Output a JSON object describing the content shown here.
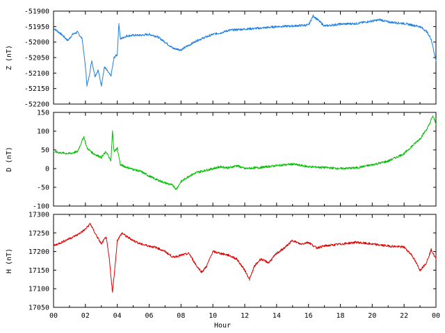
{
  "chart_data": [
    {
      "type": "line",
      "ylabel": "Z (nT)",
      "ylim": [
        -52200,
        -51900
      ],
      "yticks": [
        -51900,
        -51950,
        -52000,
        -52050,
        -52100,
        -52150,
        -52200
      ],
      "color": "#1f7fe0",
      "grid": false,
      "x": [
        0,
        0.5,
        0.9,
        1.2,
        1.5,
        1.8,
        2.0,
        2.1,
        2.2,
        2.4,
        2.6,
        2.8,
        3.0,
        3.2,
        3.4,
        3.6,
        3.8,
        4.0,
        4.1,
        4.2,
        4.4,
        4.6,
        5.0,
        5.5,
        6.0,
        6.5,
        7.0,
        7.5,
        8.0,
        8.5,
        9.0,
        9.5,
        10.0,
        10.5,
        11.0,
        11.5,
        12.0,
        13.0,
        14.0,
        15.0,
        16.0,
        16.3,
        17.0,
        18.0,
        19.0,
        20.0,
        20.5,
        21.0,
        22.0,
        23.0,
        23.4,
        23.7,
        24.0
      ],
      "y": [
        -51955,
        -51975,
        -51995,
        -51975,
        -51968,
        -51990,
        -52080,
        -52140,
        -52120,
        -52060,
        -52110,
        -52090,
        -52140,
        -52080,
        -52095,
        -52110,
        -52050,
        -52040,
        -51940,
        -51990,
        -51985,
        -51980,
        -51978,
        -51978,
        -51975,
        -51982,
        -52000,
        -52020,
        -52025,
        -52010,
        -51995,
        -51985,
        -51975,
        -51970,
        -51962,
        -51960,
        -51958,
        -51955,
        -51950,
        -51948,
        -51945,
        -51915,
        -51948,
        -51942,
        -51940,
        -51932,
        -51928,
        -51935,
        -51940,
        -51950,
        -51965,
        -51990,
        -52060
      ]
    },
    {
      "type": "line",
      "ylabel": "D (nT)",
      "ylim": [
        -100,
        150
      ],
      "yticks": [
        150,
        100,
        50,
        0,
        -50,
        -100
      ],
      "color": "#00c000",
      "grid": false,
      "x": [
        0,
        0.5,
        1.0,
        1.5,
        1.9,
        2.1,
        2.5,
        3.0,
        3.3,
        3.6,
        3.7,
        3.8,
        4.0,
        4.2,
        4.5,
        5.0,
        5.5,
        6.0,
        6.5,
        7.0,
        7.5,
        7.7,
        8.0,
        8.5,
        9.0,
        9.5,
        10.0,
        10.5,
        11.0,
        11.5,
        12.0,
        13.0,
        14.0,
        15.0,
        16.0,
        17.0,
        18.0,
        19.0,
        20.0,
        21.0,
        22.0,
        22.5,
        23.0,
        23.5,
        23.8,
        24.0
      ],
      "y": [
        45,
        42,
        40,
        45,
        85,
        55,
        40,
        30,
        45,
        20,
        100,
        45,
        55,
        10,
        5,
        -2,
        -8,
        -20,
        -30,
        -38,
        -45,
        -55,
        -35,
        -20,
        -10,
        -5,
        0,
        5,
        2,
        8,
        0,
        3,
        8,
        12,
        5,
        3,
        0,
        2,
        10,
        20,
        40,
        60,
        80,
        110,
        140,
        120
      ]
    },
    {
      "type": "line",
      "ylabel": "H (nT)",
      "xlabel": "Hour",
      "ylim": [
        17050,
        17300
      ],
      "yticks": [
        17300,
        17250,
        17200,
        17150,
        17100,
        17050
      ],
      "color": "#e00000",
      "grid": false,
      "x": [
        0,
        0.5,
        1.0,
        1.5,
        2.0,
        2.3,
        2.6,
        3.0,
        3.3,
        3.5,
        3.7,
        3.9,
        4.0,
        4.3,
        4.6,
        5.0,
        5.5,
        6.0,
        6.5,
        7.0,
        7.5,
        8.0,
        8.5,
        9.0,
        9.3,
        9.6,
        10.0,
        10.5,
        11.0,
        11.5,
        12.0,
        12.3,
        12.6,
        13.0,
        13.5,
        14.0,
        14.5,
        15.0,
        15.5,
        16.0,
        16.5,
        17.0,
        18.0,
        19.0,
        20.0,
        21.0,
        22.0,
        22.5,
        23.0,
        23.4,
        23.7,
        24.0
      ],
      "y": [
        17215,
        17225,
        17235,
        17245,
        17260,
        17275,
        17250,
        17220,
        17240,
        17180,
        17090,
        17180,
        17230,
        17250,
        17240,
        17230,
        17220,
        17215,
        17210,
        17200,
        17185,
        17190,
        17195,
        17160,
        17145,
        17160,
        17200,
        17195,
        17190,
        17180,
        17150,
        17125,
        17160,
        17180,
        17170,
        17195,
        17210,
        17230,
        17220,
        17225,
        17210,
        17215,
        17220,
        17225,
        17220,
        17215,
        17212,
        17190,
        17150,
        17170,
        17205,
        17180
      ]
    }
  ],
  "x_axis": {
    "xlim": [
      0,
      24
    ],
    "major_ticks": [
      0,
      2,
      4,
      6,
      8,
      10,
      12,
      14,
      16,
      18,
      20,
      22,
      24
    ],
    "tick_labels": [
      "00",
      "02",
      "04",
      "06",
      "08",
      "10",
      "12",
      "14",
      "16",
      "18",
      "20",
      "22",
      "00"
    ],
    "label": "Hour"
  }
}
